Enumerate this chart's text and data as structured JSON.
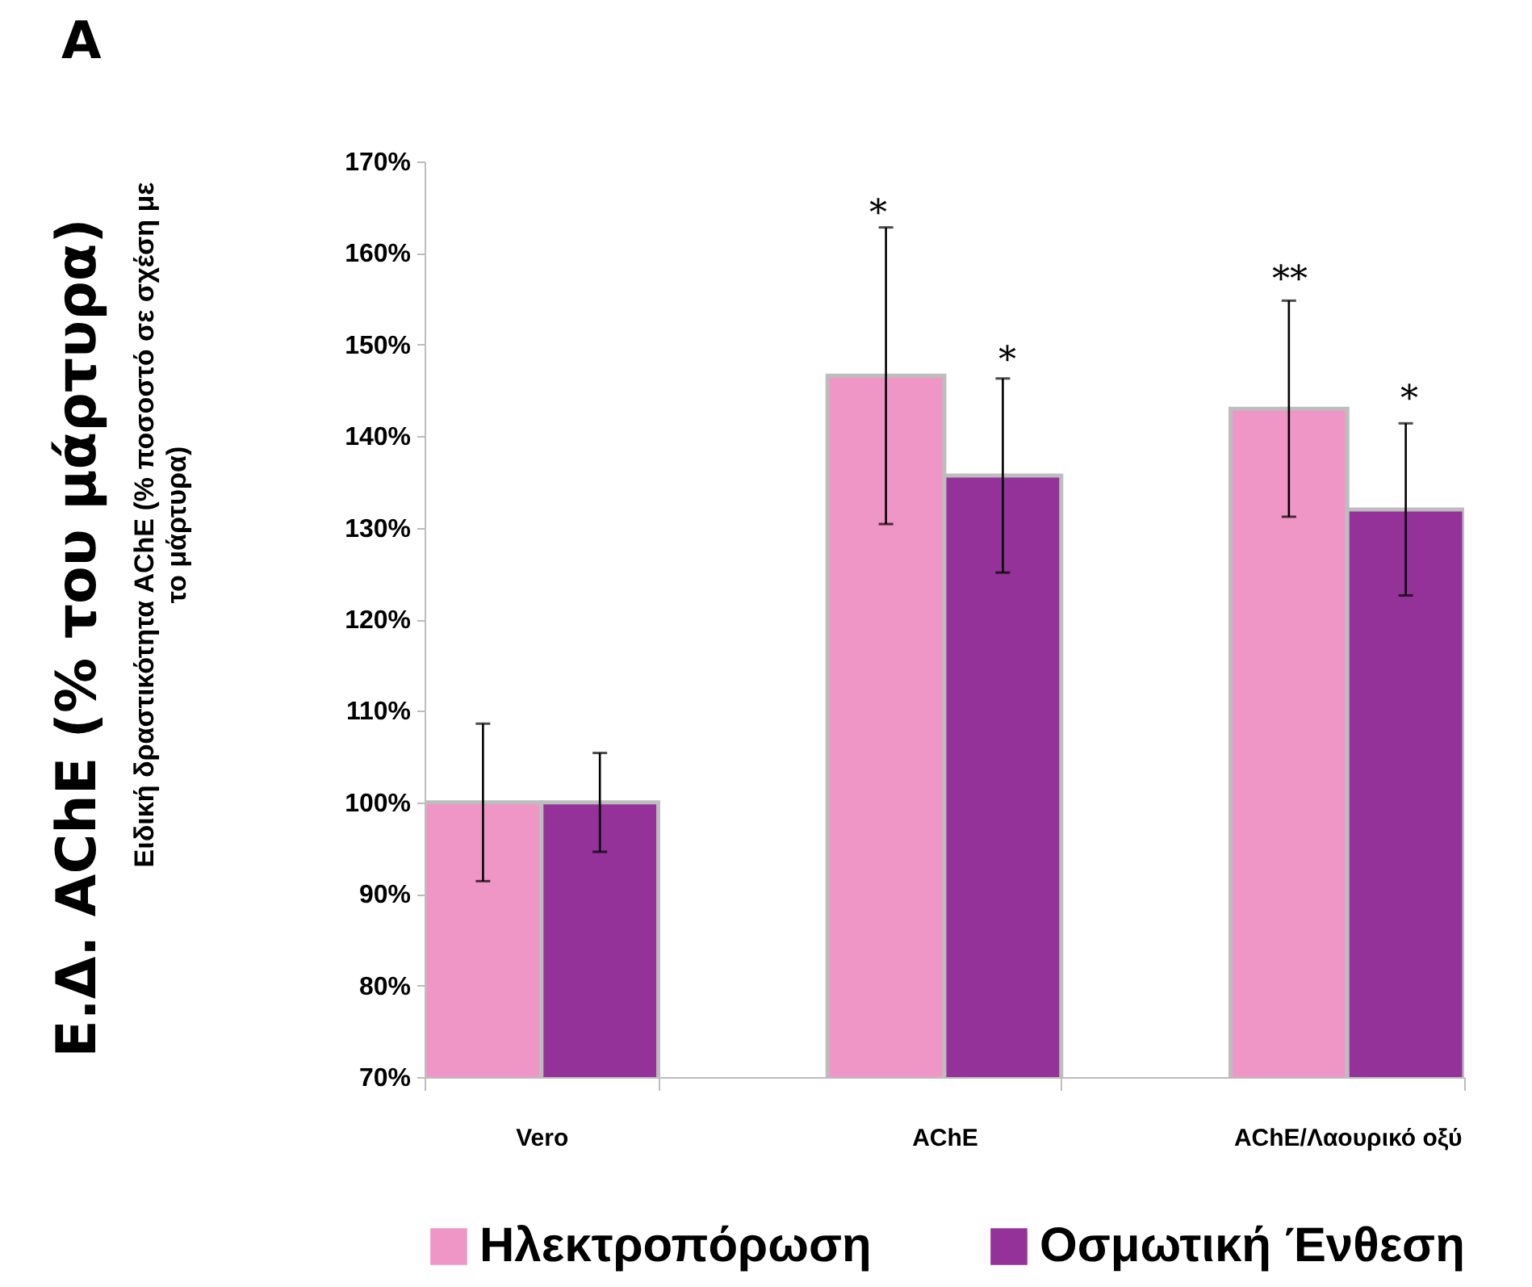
{
  "chart_data": {
    "type": "bar",
    "ylabel": "Ε.Δ. AChE (% του μάρτυρα)",
    "categories": [
      "Vero",
      "AChE",
      "AChE/Λαουρικό οξύ"
    ],
    "series": [
      {
        "name": "Ηλεκτροπόρωση",
        "color": "#f096c6",
        "values": [
          100,
          146.6,
          143
        ],
        "errors": [
          8.6,
          16.2,
          11.8
        ]
      },
      {
        "name": "Οσμωτική Ένθεση",
        "color": "#94329a",
        "values": [
          100,
          135.7,
          132
        ],
        "errors": [
          5.4,
          10.6,
          9.4
        ]
      }
    ],
    "ylim": [
      70,
      170
    ],
    "yticks": [
      {
        "value": 70,
        "label": "70%"
      },
      {
        "value": 80,
        "label": "80%"
      },
      {
        "value": 90,
        "label": "90%"
      },
      {
        "value": 100,
        "label": "100%"
      },
      {
        "value": 110,
        "label": "110%"
      },
      {
        "value": 120,
        "label": "120%"
      },
      {
        "value": 130,
        "label": "130%"
      },
      {
        "value": 140,
        "label": "140%"
      },
      {
        "value": 150,
        "label": "150%"
      },
      {
        "value": 160,
        "label": "160%"
      },
      {
        "value": 170,
        "label": "170%"
      }
    ],
    "annotations": [
      "A",
      "Ειδική δραστικότητα AChE (% ποσοστό σε σχέση με το μάρτυρα)",
      "*",
      "*",
      "**",
      "*"
    ],
    "legend": "bottom",
    "grid": false
  }
}
